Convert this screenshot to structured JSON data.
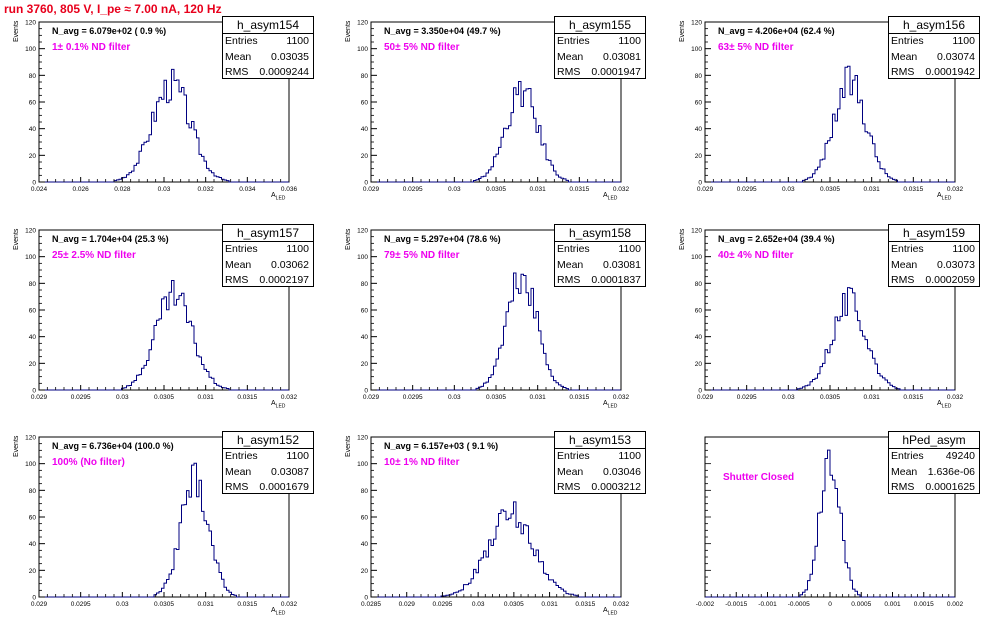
{
  "title": "run 3760,   805 V, I_pe ≈ 7.00 nA, 120 Hz",
  "colors": {
    "title": "#e8001c",
    "hist": "#000080",
    "filter": "#ee00ee"
  },
  "chart_data": [
    {
      "type": "bar",
      "name": "h_asym154",
      "n_avg": "N_avg = 6.079e+02 ( 0.9 %)",
      "filter": "1± 0.1% ND filter",
      "stats": {
        "entries": "1100",
        "mean": "0.03035",
        "rms": "0.0009244"
      },
      "xlabel": "A",
      "xlabel_sub": "LED",
      "ylabel": "Events",
      "xlim": [
        0.024,
        0.036
      ],
      "ylim": [
        0,
        120
      ],
      "xticks": [
        "0.024",
        "0.026",
        "0.028",
        "0.03",
        "0.032",
        "0.034",
        "0.036"
      ],
      "yticks": [
        "0",
        "20",
        "40",
        "60",
        "80",
        "100",
        "120"
      ],
      "peak": 73
    },
    {
      "type": "bar",
      "name": "h_asym155",
      "n_avg": "N_avg = 3.350e+04 (49.7 %)",
      "filter": "50± 5% ND filter",
      "stats": {
        "entries": "1100",
        "mean": "0.03081",
        "rms": "0.0001947"
      },
      "xlabel": "A",
      "xlabel_sub": "LED",
      "ylabel": "Events",
      "xlim": [
        0.029,
        0.032
      ],
      "ylim": [
        0,
        120
      ],
      "xticks": [
        "0.029",
        "0.0295",
        "0.03",
        "0.0305",
        "0.031",
        "0.0315",
        "0.032"
      ],
      "yticks": [
        "0",
        "20",
        "40",
        "60",
        "80",
        "100",
        "120"
      ],
      "peak": 67
    },
    {
      "type": "bar",
      "name": "h_asym156",
      "n_avg": "N_avg = 4.206e+04 (62.4 %)",
      "filter": "63± 5% ND filter",
      "stats": {
        "entries": "1100",
        "mean": "0.03074",
        "rms": "0.0001942"
      },
      "xlabel": "A",
      "xlabel_sub": "LED",
      "ylabel": "Events",
      "xlim": [
        0.029,
        0.032
      ],
      "ylim": [
        0,
        120
      ],
      "xticks": [
        "0.029",
        "0.0295",
        "0.03",
        "0.0305",
        "0.031",
        "0.0315",
        "0.032"
      ],
      "yticks": [
        "0",
        "20",
        "40",
        "60",
        "80",
        "100",
        "120"
      ],
      "peak": 75
    },
    {
      "type": "bar",
      "name": "h_asym157",
      "n_avg": "N_avg = 1.704e+04 (25.3 %)",
      "filter": "25± 2.5% ND filter",
      "stats": {
        "entries": "1100",
        "mean": "0.03062",
        "rms": "0.0002197"
      },
      "xlabel": "A",
      "xlabel_sub": "LED",
      "ylabel": "Events",
      "xlim": [
        0.029,
        0.032
      ],
      "ylim": [
        0,
        120
      ],
      "xticks": [
        "0.029",
        "0.0295",
        "0.03",
        "0.0305",
        "0.031",
        "0.0315",
        "0.032"
      ],
      "yticks": [
        "0",
        "20",
        "40",
        "60",
        "80",
        "100",
        "120"
      ],
      "peak": 70
    },
    {
      "type": "bar",
      "name": "h_asym158",
      "n_avg": "N_avg = 5.297e+04 (78.6 %)",
      "filter": "79± 5% ND filter",
      "stats": {
        "entries": "1100",
        "mean": "0.03081",
        "rms": "0.0001837"
      },
      "xlabel": "A",
      "xlabel_sub": "LED",
      "ylabel": "Events",
      "xlim": [
        0.029,
        0.032
      ],
      "ylim": [
        0,
        120
      ],
      "xticks": [
        "0.029",
        "0.0295",
        "0.03",
        "0.0305",
        "0.031",
        "0.0315",
        "0.032"
      ],
      "yticks": [
        "0",
        "20",
        "40",
        "60",
        "80",
        "100",
        "120"
      ],
      "peak": 84
    },
    {
      "type": "bar",
      "name": "h_asym159",
      "n_avg": "N_avg = 2.652e+04 (39.4 %)",
      "filter": "40± 4% ND filter",
      "stats": {
        "entries": "1100",
        "mean": "0.03073",
        "rms": "0.0002059"
      },
      "xlabel": "A",
      "xlabel_sub": "LED",
      "ylabel": "Events",
      "xlim": [
        0.029,
        0.032
      ],
      "ylim": [
        0,
        120
      ],
      "xticks": [
        "0.029",
        "0.0295",
        "0.03",
        "0.0305",
        "0.031",
        "0.0315",
        "0.032"
      ],
      "yticks": [
        "0",
        "20",
        "40",
        "60",
        "80",
        "100",
        "120"
      ],
      "peak": 66
    },
    {
      "type": "bar",
      "name": "h_asym152",
      "n_avg": "N_avg = 6.736e+04 (100.0 %)",
      "filter": "100% (No filter)",
      "stats": {
        "entries": "1100",
        "mean": "0.03087",
        "rms": "0.0001679"
      },
      "xlabel": "A",
      "xlabel_sub": "LED",
      "ylabel": "Events",
      "xlim": [
        0.029,
        0.032
      ],
      "ylim": [
        0,
        120
      ],
      "xticks": [
        "0.029",
        "0.0295",
        "0.03",
        "0.0305",
        "0.031",
        "0.0315",
        "0.032"
      ],
      "yticks": [
        "0",
        "20",
        "40",
        "60",
        "80",
        "100",
        "120"
      ],
      "peak": 86
    },
    {
      "type": "bar",
      "name": "h_asym153",
      "n_avg": "N_avg = 6.157e+03 ( 9.1 %)",
      "filter": "10± 1% ND filter",
      "stats": {
        "entries": "1100",
        "mean": "0.03046",
        "rms": "0.0003212"
      },
      "xlabel": "A",
      "xlabel_sub": "LED",
      "ylabel": "Events",
      "xlim": [
        0.0285,
        0.032
      ],
      "ylim": [
        0,
        120
      ],
      "xticks": [
        "0.0285",
        "0.029",
        "0.0295",
        "0.03",
        "0.0305",
        "0.031",
        "0.0315",
        "0.032"
      ],
      "yticks": [
        "0",
        "20",
        "40",
        "60",
        "80",
        "100",
        "120"
      ],
      "peak": 62
    },
    {
      "type": "bar",
      "name": "hPed_asym",
      "n_avg": "",
      "filter": "Shutter Closed",
      "stats": {
        "entries": "49240",
        "mean": "1.636e-06",
        "rms": "0.0001625"
      },
      "xlabel": "",
      "xlabel_sub": "",
      "ylabel": "",
      "xlim": [
        -0.002,
        0.002
      ],
      "ylim": [
        0,
        6000
      ],
      "xticks": [
        "-0.002",
        "-0.0015",
        "-0.001",
        "-0.0005",
        "0",
        "0.0005",
        "0.001",
        "0.0015",
        "0.002"
      ],
      "yticks": [],
      "peak": 5050
    }
  ]
}
